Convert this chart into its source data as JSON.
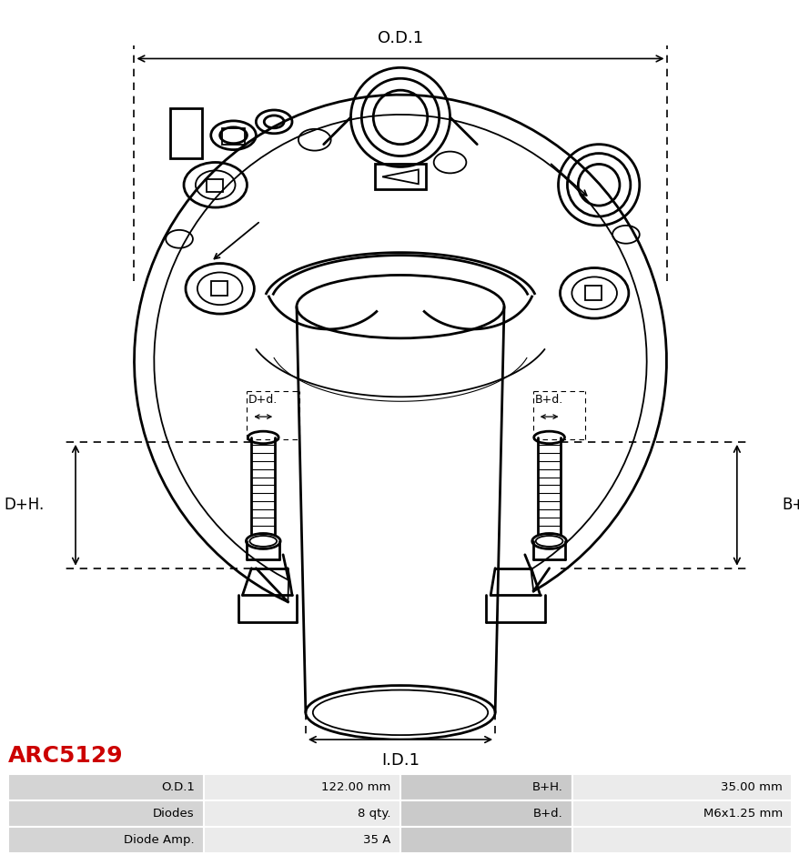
{
  "title_text": "ARC5129",
  "title_color": "#cc0000",
  "bg_color": "#ffffff",
  "table_rows": [
    [
      "O.D.1",
      "122.00 mm",
      "B+H.",
      "35.00 mm"
    ],
    [
      "Diodes",
      "8 qty.",
      "B+d.",
      "M6x1.25 mm"
    ],
    [
      "Diode Amp.",
      "35 A",
      "",
      ""
    ]
  ],
  "dim_OD1": "O.D.1",
  "dim_ID1": "I.D.1",
  "dim_DH": "D+H.",
  "dim_BH": "B+H.",
  "dim_Dd": "D+d.",
  "dim_Bd": "B+d.",
  "lw_main": 2.0,
  "lw_thin": 1.3,
  "lw_dim": 1.2,
  "col": "#000000",
  "dim_font": 13,
  "small_font": 9,
  "table_font": 9.5
}
